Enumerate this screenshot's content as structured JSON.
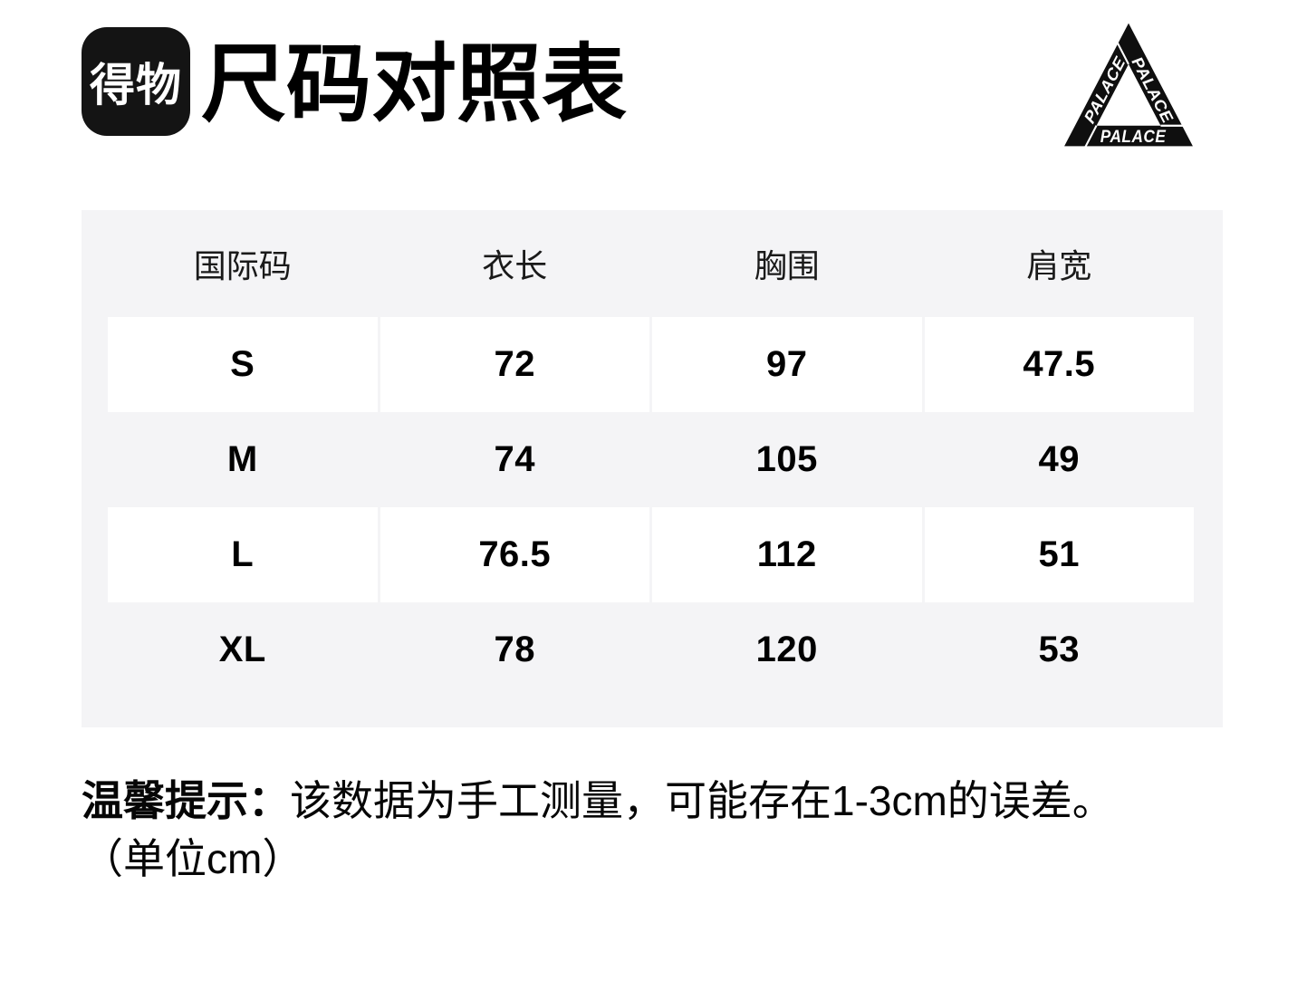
{
  "header": {
    "logo_text": "得物",
    "title": "尺码对照表"
  },
  "palace": {
    "word": "PALACE"
  },
  "table": {
    "columns": [
      "国际码",
      "衣长",
      "胸围",
      "肩宽"
    ],
    "rows": [
      {
        "size": "S",
        "values": [
          "72",
          "97",
          "47.5"
        ]
      },
      {
        "size": "M",
        "values": [
          "74",
          "105",
          "49"
        ]
      },
      {
        "size": "L",
        "values": [
          "76.5",
          "112",
          "51"
        ]
      },
      {
        "size": "XL",
        "values": [
          "78",
          "120",
          "53"
        ]
      }
    ]
  },
  "note": {
    "label": "温馨提示：",
    "text": "该数据为手工测量，可能存在1-3cm的误差。",
    "unit": "（单位cm）"
  },
  "colors": {
    "table_background": "#f4f4f6",
    "cell_background": "#ffffff",
    "logo_background": "#141414",
    "text": "#000000"
  }
}
